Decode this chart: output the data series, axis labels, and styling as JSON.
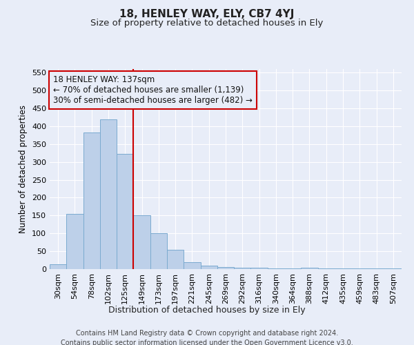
{
  "title": "18, HENLEY WAY, ELY, CB7 4YJ",
  "subtitle": "Size of property relative to detached houses in Ely",
  "xlabel": "Distribution of detached houses by size in Ely",
  "ylabel": "Number of detached properties",
  "categories": [
    "30sqm",
    "54sqm",
    "78sqm",
    "102sqm",
    "125sqm",
    "149sqm",
    "173sqm",
    "197sqm",
    "221sqm",
    "245sqm",
    "269sqm",
    "292sqm",
    "316sqm",
    "340sqm",
    "364sqm",
    "388sqm",
    "412sqm",
    "435sqm",
    "459sqm",
    "483sqm",
    "507sqm"
  ],
  "values": [
    13,
    155,
    383,
    420,
    323,
    150,
    100,
    55,
    20,
    10,
    5,
    3,
    3,
    1,
    1,
    4,
    1,
    1,
    1,
    1,
    2
  ],
  "bar_color": "#bdd0e9",
  "bar_edge_color": "#7aaacf",
  "background_color": "#e8edf8",
  "grid_color": "#ffffff",
  "vline_x": 4.5,
  "vline_color": "#cc0000",
  "annotation_line1": "18 HENLEY WAY: 137sqm",
  "annotation_line2": "← 70% of detached houses are smaller (1,139)",
  "annotation_line3": "30% of semi-detached houses are larger (482) →",
  "annotation_box_color": "#cc0000",
  "annotation_fontsize": 8.5,
  "ylim": [
    0,
    560
  ],
  "yticks": [
    0,
    50,
    100,
    150,
    200,
    250,
    300,
    350,
    400,
    450,
    500,
    550
  ],
  "title_fontsize": 11,
  "subtitle_fontsize": 9.5,
  "xlabel_fontsize": 9,
  "ylabel_fontsize": 8.5,
  "tick_fontsize": 8,
  "footer_line1": "Contains HM Land Registry data © Crown copyright and database right 2024.",
  "footer_line2": "Contains public sector information licensed under the Open Government Licence v3.0.",
  "footer_fontsize": 7
}
